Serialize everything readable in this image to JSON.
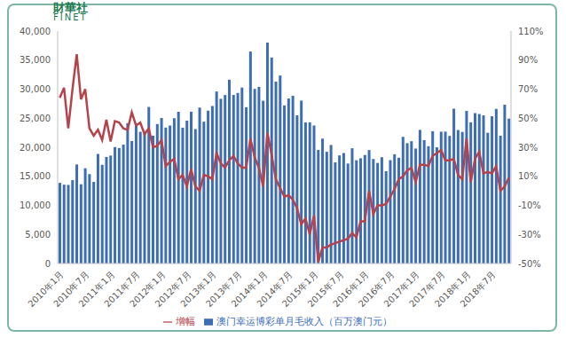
{
  "chart_data": {
    "type": "bar_line",
    "annotations": [
      "財華社",
      "FINET"
    ],
    "categories": [
      "2010年1月",
      null,
      null,
      null,
      null,
      null,
      "2010年7月",
      null,
      null,
      null,
      null,
      null,
      "2011年1月",
      null,
      null,
      null,
      null,
      null,
      "2011年7月",
      null,
      null,
      null,
      null,
      null,
      "2012年1月",
      null,
      null,
      null,
      null,
      null,
      "2012年7月",
      null,
      null,
      null,
      null,
      null,
      "2013年1月",
      null,
      null,
      null,
      null,
      null,
      "2013年7月",
      null,
      null,
      null,
      null,
      null,
      "2014年1月",
      null,
      null,
      null,
      null,
      null,
      "2014年7月",
      null,
      null,
      null,
      null,
      null,
      "2015年1月",
      null,
      null,
      null,
      null,
      null,
      "2015年7月",
      null,
      null,
      null,
      null,
      null,
      "2016年1月",
      null,
      null,
      null,
      null,
      null,
      "2016年7月",
      null,
      null,
      null,
      null,
      null,
      "2017年1月",
      null,
      null,
      null,
      null,
      null,
      "2017年7月",
      null,
      null,
      null,
      null,
      null,
      "2018年1月",
      null,
      null,
      null,
      null,
      null,
      "2018年7月",
      null,
      null,
      null,
      null
    ],
    "series": [
      {
        "name": "澳门幸运博彩单月毛收入（百万澳门元）",
        "type": "bar",
        "color": "#3d6db5",
        "values": [
          13876,
          13561,
          13526,
          14340,
          17046,
          13639,
          16384,
          15380,
          14040,
          18846,
          16980,
          18340,
          18571,
          20032,
          19869,
          20462,
          24146,
          21075,
          23751,
          22658,
          22370,
          26940,
          22000,
          24000,
          25045,
          23390,
          23740,
          25000,
          26110,
          23370,
          24580,
          26120,
          23130,
          26830,
          24410,
          26300,
          27110,
          29600,
          28340,
          28990,
          31630,
          29000,
          29350,
          30270,
          26890,
          36480,
          30040,
          30400,
          28010,
          38010,
          35450,
          31300,
          32350,
          27200,
          28400,
          28860,
          25500,
          28030,
          24270,
          24290,
          23750,
          19540,
          21490,
          19220,
          20390,
          17400,
          18600,
          19010,
          17200,
          19830,
          17770,
          18100,
          18670,
          19520,
          17980,
          17300,
          18290,
          15880,
          17780,
          18800,
          18200,
          21790,
          20700,
          21040,
          19780,
          22990,
          21230,
          20180,
          22760,
          19990,
          22680,
          22690,
          21950,
          26640,
          22970,
          22620,
          26260,
          24300,
          25880,
          25720,
          25490,
          22490,
          25330,
          26600,
          21990,
          27330,
          24930
        ]
      },
      {
        "name": "增幅",
        "type": "line",
        "axis": "y2",
        "color": "#b4434b",
        "values": [
          64,
          71,
          43,
          70,
          94,
          63,
          70,
          43,
          38,
          42,
          35,
          49,
          34,
          48,
          47,
          43,
          42,
          54,
          45,
          47,
          39,
          43,
          30,
          31,
          35,
          17,
          20,
          22,
          8,
          11,
          3,
          15,
          3,
          0,
          11,
          10,
          8,
          26,
          19,
          16,
          21,
          24,
          19,
          16,
          16,
          36,
          23,
          16,
          3,
          40,
          25,
          8,
          2,
          -4,
          -3,
          -6,
          -12,
          -23,
          -19,
          -30,
          -17,
          -49,
          -39,
          -39,
          -37,
          -36,
          -35,
          -34,
          -33,
          -29,
          -32,
          -21,
          -21,
          0,
          -16,
          -10,
          -10,
          -9,
          -4,
          1,
          8,
          10,
          14,
          16,
          6,
          18,
          18,
          17,
          24,
          26,
          28,
          21,
          21,
          22,
          11,
          8,
          36,
          6,
          22,
          27,
          12,
          13,
          12,
          17,
          0,
          3,
          9
        ]
      }
    ],
    "ylim": [
      0,
      40000
    ],
    "yticks": [
      0,
      {
        "value": 5000,
        "label": "5,000"
      },
      {
        "value": 10000,
        "label": "10,000"
      },
      {
        "value": 15000,
        "label": "15,000"
      },
      {
        "value": 20000,
        "label": "20,000"
      },
      {
        "value": 25000,
        "label": "25,000"
      },
      {
        "value": 30000,
        "label": "30,000"
      },
      {
        "value": 35000,
        "label": "35,000"
      },
      {
        "value": 40000,
        "label": "40,000"
      }
    ],
    "y2lim": [
      -50,
      110
    ],
    "y2ticks": [
      {
        "value": -50,
        "label": "-50%"
      },
      {
        "value": -30,
        "label": "-30%"
      },
      {
        "value": -10,
        "label": "-10%"
      },
      {
        "value": 10,
        "label": "10%"
      },
      {
        "value": 30,
        "label": "30%"
      },
      {
        "value": 50,
        "label": "50%"
      },
      {
        "value": 70,
        "label": "70%"
      },
      {
        "value": 90,
        "label": "90%"
      },
      {
        "value": 110,
        "label": "110%"
      }
    ],
    "grid": false,
    "legend": "bottom"
  }
}
